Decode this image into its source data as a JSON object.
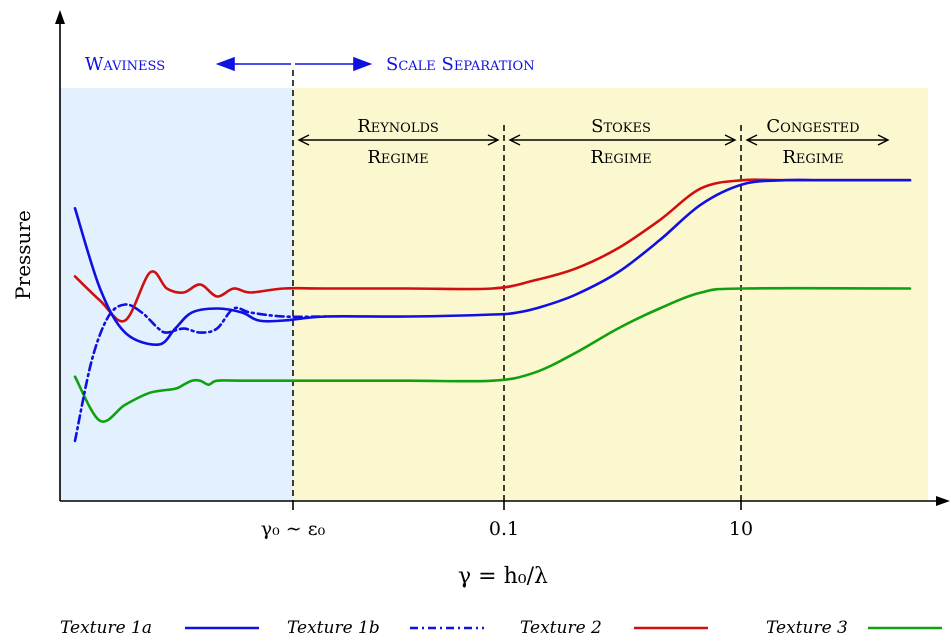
{
  "chart_data": {
    "type": "line",
    "ylabel": "Pressure",
    "xlabel": "γ = h₀/λ",
    "x_ticks": [
      "γ₀ ∼ ε₀",
      "0.1",
      "10"
    ],
    "grid": false,
    "legend_position": "bottom",
    "series": [
      {
        "name": "Texture 1a",
        "color": "#1010e0",
        "style": "solid",
        "x": [
          0.0,
          0.03,
          0.06,
          0.1,
          0.12,
          0.14,
          0.17,
          0.2,
          0.22,
          0.25,
          0.3,
          0.4,
          0.5,
          0.53,
          0.56,
          0.6,
          0.65,
          0.7,
          0.75,
          0.8,
          0.85,
          0.9,
          1.0
        ],
        "y": [
          0.73,
          0.53,
          0.42,
          0.39,
          0.43,
          0.47,
          0.48,
          0.47,
          0.45,
          0.45,
          0.46,
          0.46,
          0.465,
          0.47,
          0.485,
          0.515,
          0.57,
          0.65,
          0.74,
          0.79,
          0.8,
          0.8,
          0.8
        ]
      },
      {
        "name": "Texture 1b",
        "color": "#1010e0",
        "style": "dashdot",
        "x": [
          0.0,
          0.02,
          0.04,
          0.06,
          0.08,
          0.1,
          0.11,
          0.13,
          0.15,
          0.17,
          0.19,
          0.21,
          0.25,
          0.3
        ],
        "y": [
          0.15,
          0.35,
          0.46,
          0.49,
          0.47,
          0.43,
          0.42,
          0.43,
          0.42,
          0.43,
          0.48,
          0.47,
          0.46,
          0.46
        ]
      },
      {
        "name": "Texture 2",
        "color": "#d01010",
        "style": "solid",
        "x": [
          0.0,
          0.03,
          0.06,
          0.09,
          0.11,
          0.13,
          0.15,
          0.17,
          0.19,
          0.21,
          0.25,
          0.3,
          0.4,
          0.5,
          0.55,
          0.6,
          0.65,
          0.7,
          0.75,
          0.8,
          0.85,
          1.0
        ],
        "y": [
          0.56,
          0.5,
          0.45,
          0.57,
          0.53,
          0.52,
          0.54,
          0.51,
          0.53,
          0.52,
          0.53,
          0.53,
          0.53,
          0.53,
          0.55,
          0.58,
          0.63,
          0.7,
          0.78,
          0.8,
          0.8,
          0.8
        ]
      },
      {
        "name": "Texture 3",
        "color": "#10a010",
        "style": "solid",
        "x": [
          0.0,
          0.03,
          0.06,
          0.09,
          0.12,
          0.13,
          0.14,
          0.15,
          0.16,
          0.17,
          0.2,
          0.3,
          0.4,
          0.5,
          0.55,
          0.6,
          0.65,
          0.7,
          0.75,
          0.8,
          1.0
        ],
        "y": [
          0.31,
          0.2,
          0.24,
          0.27,
          0.28,
          0.29,
          0.3,
          0.3,
          0.29,
          0.3,
          0.3,
          0.3,
          0.3,
          0.3,
          0.32,
          0.37,
          0.43,
          0.48,
          0.52,
          0.53,
          0.53
        ]
      }
    ],
    "regions": [
      {
        "label": "Waviness",
        "color": "#e2f1fd"
      },
      {
        "label": "Scale Separation",
        "color": "#fbf8cf"
      }
    ],
    "regimes": [
      {
        "line1": "Reynolds",
        "line2": "Regime"
      },
      {
        "line1": "Stokes",
        "line2": "Regime"
      },
      {
        "line1": "Congested",
        "line2": "Regime"
      }
    ],
    "colors": {
      "blue_text": "#1010e0",
      "region_waviness": "#e2f1fd",
      "region_scale": "#fbf8cf"
    }
  }
}
